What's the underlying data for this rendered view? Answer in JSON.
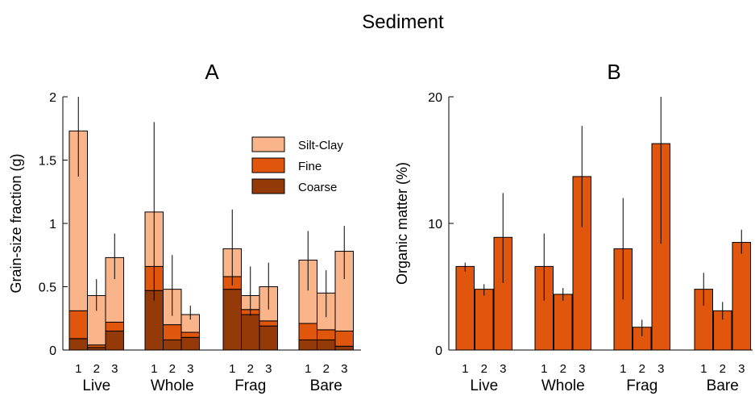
{
  "page_title": "Sediment",
  "colors": {
    "silt_clay": "#F9B48A",
    "fine": "#E0560C",
    "coarse": "#933A08",
    "organic": "#E0560C",
    "stroke": "#000000"
  },
  "chart_data": [
    {
      "panel": "A",
      "type": "bar",
      "stacked": true,
      "ylabel": "Grain-size fraction (g)",
      "ylim": [
        0,
        2
      ],
      "yticks": [
        "0",
        "0.5",
        "1",
        "1.5",
        "2"
      ],
      "groups": [
        "Live",
        "Whole",
        "Frag",
        "Bare"
      ],
      "sub_labels": [
        "1",
        "2",
        "3"
      ],
      "legend": [
        "Silt-Clay",
        "Fine",
        "Coarse"
      ],
      "legend_position": "top-right",
      "series": [
        {
          "name": "Coarse",
          "values": [
            0.09,
            0.02,
            0.15,
            0.47,
            0.08,
            0.1,
            0.48,
            0.28,
            0.19,
            0.08,
            0.08,
            0.03
          ]
        },
        {
          "name": "Fine",
          "values": [
            0.22,
            0.02,
            0.07,
            0.19,
            0.12,
            0.04,
            0.1,
            0.04,
            0.04,
            0.13,
            0.08,
            0.12
          ]
        },
        {
          "name": "Silt-Clay",
          "values": [
            1.42,
            0.39,
            0.51,
            0.43,
            0.28,
            0.14,
            0.22,
            0.11,
            0.27,
            0.5,
            0.29,
            0.63
          ]
        }
      ],
      "totals": [
        1.74,
        0.43,
        0.73,
        1.09,
        0.48,
        0.28,
        0.8,
        0.43,
        0.5,
        0.71,
        0.45,
        0.78
      ],
      "error_low": [
        1.37,
        0.31,
        0.56,
        0.39,
        0.27,
        0.24,
        0.51,
        0.27,
        0.32,
        0.47,
        0.26,
        0.56
      ],
      "error_high": [
        2.0,
        0.56,
        0.92,
        1.8,
        0.75,
        0.35,
        1.11,
        0.66,
        0.69,
        0.94,
        0.63,
        0.98
      ]
    },
    {
      "panel": "B",
      "type": "bar",
      "ylabel": "Organic   matter (%)",
      "ylim": [
        0,
        20
      ],
      "yticks": [
        "0",
        "10",
        "20"
      ],
      "groups": [
        "Live",
        "Whole",
        "Frag",
        "Bare"
      ],
      "sub_labels": [
        "1",
        "2",
        "3"
      ],
      "values": [
        6.6,
        4.8,
        8.9,
        6.6,
        4.4,
        13.7,
        8.0,
        1.8,
        16.3,
        4.8,
        3.1,
        8.5
      ],
      "error_low": [
        6.2,
        4.3,
        5.3,
        3.9,
        3.9,
        9.7,
        4.0,
        1.1,
        8.4,
        3.5,
        2.4,
        7.6
      ],
      "error_high": [
        6.9,
        5.2,
        12.4,
        9.2,
        4.9,
        17.7,
        12.0,
        2.4,
        20.0,
        6.1,
        3.8,
        9.5
      ]
    }
  ]
}
